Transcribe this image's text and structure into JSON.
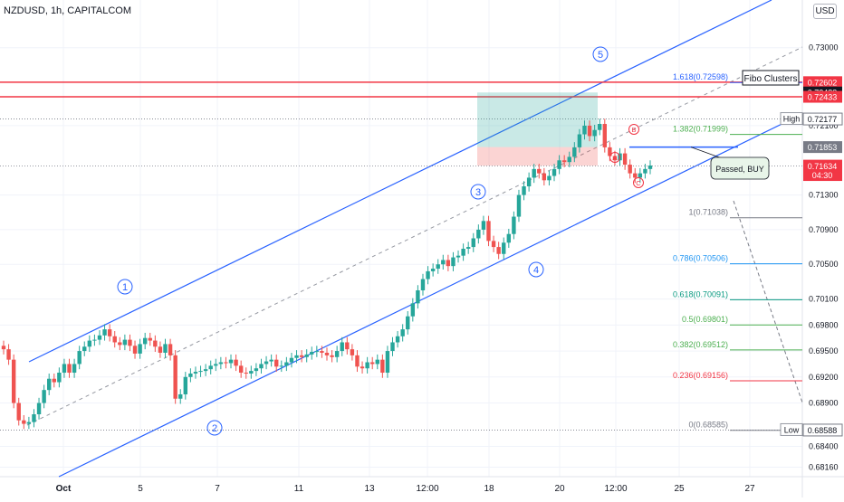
{
  "header": {
    "title": "NZDUSD, 1h, CAPITALCOM"
  },
  "currency_button": "USD",
  "colors": {
    "bull": "#26a69a",
    "bear": "#ef5350",
    "channel": "#2962ff",
    "resistance": "#f23645",
    "grid": "#e0e3eb"
  },
  "chart_data": {
    "type": "candlestick",
    "symbol": "NZDUSD",
    "interval": "1h",
    "ylim": [
      0.6805,
      0.7355
    ],
    "price_ticks": [
      "0.73000",
      "0.72100",
      "0.71300",
      "0.70900",
      "0.70500",
      "0.70100",
      "0.69800",
      "0.69500",
      "0.69200",
      "0.68900",
      "0.68400",
      "0.68160"
    ],
    "x_ticks": [
      "Oct",
      "5",
      "7",
      "11",
      "13",
      "12:00",
      "18",
      "20",
      "12:00",
      "25",
      "27"
    ],
    "price_badges": [
      {
        "label": "0.72602",
        "value": 0.72602,
        "kind": "red"
      },
      {
        "label": "0.72483",
        "value": 0.72483,
        "kind": "dark"
      },
      {
        "label": "0.72433",
        "value": 0.72433,
        "kind": "red"
      },
      {
        "label": "0.72177",
        "value": 0.72177,
        "kind": "outline"
      },
      {
        "label": "0.71853",
        "value": 0.71853,
        "kind": "gray"
      },
      {
        "label": "0.71639",
        "value": 0.71639,
        "kind": "red"
      },
      {
        "label": "04:30",
        "value": 0.7153,
        "kind": "red"
      },
      {
        "label": "0.71634",
        "value": 0.71634,
        "kind": "red"
      },
      {
        "label": "0.68588",
        "value": 0.68588,
        "kind": "outline"
      }
    ],
    "high_label": "High",
    "low_label": "Low",
    "fibonacci": [
      {
        "label": "1.618(0.72598)",
        "value": 0.72598,
        "color": "#2962ff"
      },
      {
        "label": "1.382(0.71999)",
        "value": 0.71999,
        "color": "#4caf50"
      },
      {
        "label": "1(0.71038)",
        "value": 0.71038,
        "color": "#787b86"
      },
      {
        "label": "0.786(0.70506)",
        "value": 0.70506,
        "color": "#2196f3"
      },
      {
        "label": "0.618(0.70091)",
        "value": 0.70091,
        "color": "#089981"
      },
      {
        "label": "0.5(0.69801)",
        "value": 0.69801,
        "color": "#4caf50"
      },
      {
        "label": "0.382(0.69512)",
        "value": 0.69512,
        "color": "#4caf50"
      },
      {
        "label": "0.236(0.69156)",
        "value": 0.69156,
        "color": "#f23645"
      },
      {
        "label": "0(0.68585)",
        "value": 0.68585,
        "color": "#787b86"
      }
    ],
    "resistance_levels": [
      0.72602,
      0.72433
    ],
    "fibo_clusters_label": "Fibo Clusters",
    "buy_level": 0.71853,
    "annotation": "Passed, BUY",
    "waves": [
      "1",
      "2",
      "3",
      "4",
      "5"
    ],
    "abc": [
      "A",
      "B",
      "C"
    ],
    "close_price": [
      0.6952,
      0.694,
      0.689,
      0.687,
      0.6866,
      0.6868,
      0.6877,
      0.689,
      0.6905,
      0.6918,
      0.6914,
      0.6925,
      0.6935,
      0.6925,
      0.6935,
      0.695,
      0.6955,
      0.6962,
      0.6963,
      0.6968,
      0.6975,
      0.6967,
      0.696,
      0.6957,
      0.6963,
      0.6956,
      0.6947,
      0.6958,
      0.6965,
      0.6962,
      0.6955,
      0.6948,
      0.6958,
      0.6945,
      0.6895,
      0.69,
      0.692,
      0.6924,
      0.6926,
      0.6927,
      0.6929,
      0.6933,
      0.6935,
      0.6937,
      0.6936,
      0.694,
      0.6933,
      0.6925,
      0.6924,
      0.6927,
      0.693,
      0.6935,
      0.6938,
      0.694,
      0.6932,
      0.6933,
      0.6937,
      0.6942,
      0.6945,
      0.6943,
      0.6946,
      0.6949,
      0.695,
      0.6948,
      0.6945,
      0.6943,
      0.695,
      0.696,
      0.6952,
      0.6945,
      0.6932,
      0.693,
      0.6937,
      0.6935,
      0.694,
      0.6925,
      0.695,
      0.696,
      0.6967,
      0.6975,
      0.699,
      0.7005,
      0.702,
      0.7033,
      0.7042,
      0.7045,
      0.705,
      0.7055,
      0.7048,
      0.7058,
      0.706,
      0.7068,
      0.707,
      0.708,
      0.709,
      0.71,
      0.7077,
      0.707,
      0.7062,
      0.7075,
      0.7085,
      0.7105,
      0.713,
      0.714,
      0.715,
      0.716,
      0.7155,
      0.7147,
      0.7152,
      0.716,
      0.717,
      0.7168,
      0.7174,
      0.7185,
      0.72,
      0.721,
      0.7198,
      0.7205,
      0.7212,
      0.7185,
      0.7175,
      0.717,
      0.7178,
      0.7165,
      0.7155,
      0.715,
      0.7155,
      0.716,
      0.7164
    ]
  }
}
